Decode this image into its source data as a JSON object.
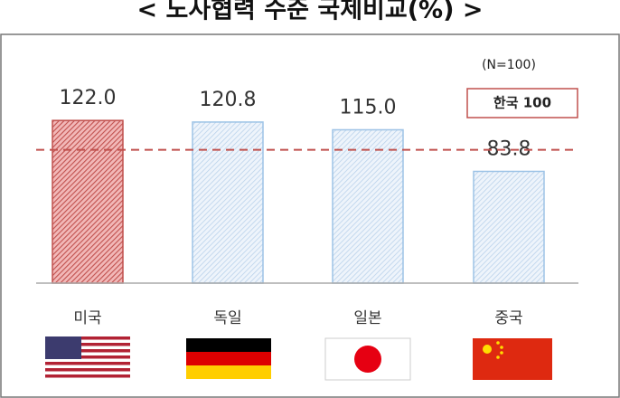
{
  "chart_data": {
    "type": "bar",
    "title": "< 노사협력 수준 국제비교(%) >",
    "subtitle": "(N=100)",
    "annotation": "한국 100",
    "reference_line": 100,
    "categories": [
      "미국",
      "독일",
      "일본",
      "중국"
    ],
    "values": [
      122.0,
      120.8,
      115.0,
      83.8
    ],
    "value_labels": [
      "122.0",
      "120.8",
      "115.0",
      "83.8"
    ],
    "colors": [
      "#c0504d",
      "#9dc3e6",
      "#9dc3e6",
      "#9dc3e6"
    ],
    "ylim": [
      0,
      135
    ]
  }
}
